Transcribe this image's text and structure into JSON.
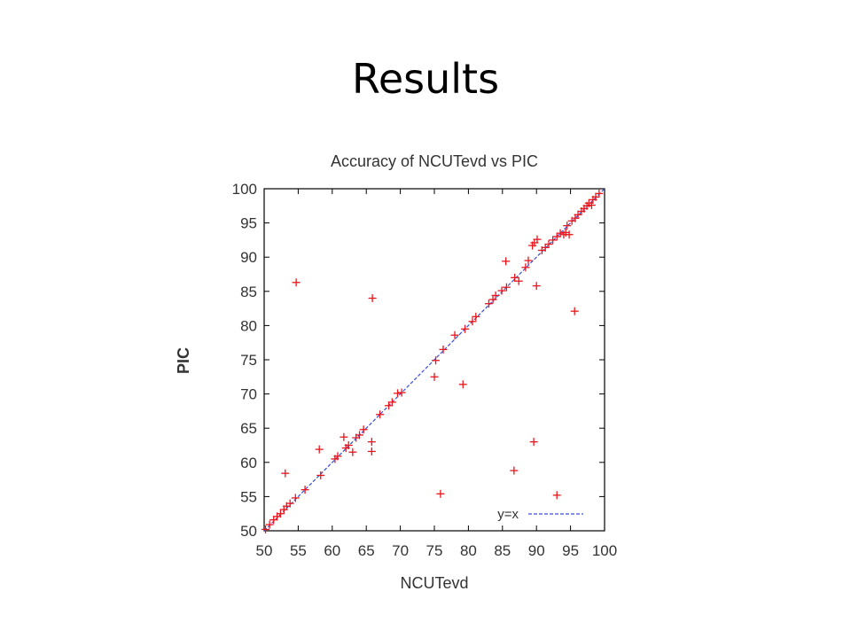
{
  "slide": {
    "title": "Results"
  },
  "chart_data": {
    "type": "scatter",
    "title": "Accuracy of NCUTevd vs PIC",
    "xlabel": "NCUTevd",
    "ylabel": "PIC",
    "xlim": [
      50,
      100
    ],
    "ylim": [
      50,
      100
    ],
    "xticks": [
      50,
      55,
      60,
      65,
      70,
      75,
      80,
      85,
      90,
      95,
      100
    ],
    "yticks": [
      50,
      55,
      60,
      65,
      70,
      75,
      80,
      85,
      90,
      95,
      100
    ],
    "grid": false,
    "legend": {
      "position": "bottom-right",
      "entries": [
        "y=x"
      ]
    },
    "colors": {
      "points": "#e8161c",
      "reference": "#3a4fd6"
    },
    "reference_line": {
      "name": "y=x",
      "style": "dashed",
      "from": [
        50,
        50
      ],
      "to": [
        100,
        100
      ]
    },
    "series": [
      {
        "marker": "plus",
        "points": [
          [
            50.2,
            50.2
          ],
          [
            50.8,
            50.9
          ],
          [
            51.4,
            51.6
          ],
          [
            51.9,
            52.1
          ],
          [
            52.4,
            52.5
          ],
          [
            52.9,
            53.1
          ],
          [
            53.3,
            53.6
          ],
          [
            53.8,
            54.0
          ],
          [
            54.6,
            54.8
          ],
          [
            56.0,
            56.0
          ],
          [
            53.1,
            58.4
          ],
          [
            54.7,
            86.3
          ],
          [
            58.3,
            58.1
          ],
          [
            58.1,
            61.9
          ],
          [
            60.4,
            60.5
          ],
          [
            60.8,
            60.9
          ],
          [
            61.7,
            63.7
          ],
          [
            62.0,
            62.1
          ],
          [
            62.4,
            62.5
          ],
          [
            63.0,
            61.5
          ],
          [
            63.5,
            63.6
          ],
          [
            64.0,
            64.0
          ],
          [
            64.6,
            64.8
          ],
          [
            65.8,
            61.6
          ],
          [
            65.8,
            63.0
          ],
          [
            65.9,
            84.0
          ],
          [
            67.0,
            67.0
          ],
          [
            68.3,
            68.3
          ],
          [
            68.8,
            68.8
          ],
          [
            69.6,
            70.1
          ],
          [
            70.2,
            70.2
          ],
          [
            75.0,
            72.5
          ],
          [
            75.2,
            74.9
          ],
          [
            75.9,
            55.4
          ],
          [
            76.3,
            76.5
          ],
          [
            78.0,
            78.6
          ],
          [
            79.2,
            71.4
          ],
          [
            79.5,
            79.5
          ],
          [
            80.6,
            80.6
          ],
          [
            81.1,
            81.3
          ],
          [
            83.0,
            83.2
          ],
          [
            83.6,
            83.8
          ],
          [
            84.0,
            84.4
          ],
          [
            84.9,
            85.1
          ],
          [
            85.5,
            89.4
          ],
          [
            85.6,
            85.6
          ],
          [
            86.7,
            58.8
          ],
          [
            86.8,
            87.0
          ],
          [
            87.4,
            86.5
          ],
          [
            88.4,
            88.5
          ],
          [
            88.8,
            89.5
          ],
          [
            89.4,
            91.7
          ],
          [
            89.6,
            63.0
          ],
          [
            89.7,
            92.1
          ],
          [
            90.0,
            85.8
          ],
          [
            90.1,
            92.6
          ],
          [
            90.8,
            91.0
          ],
          [
            91.3,
            91.4
          ],
          [
            91.8,
            91.9
          ],
          [
            92.4,
            92.5
          ],
          [
            93.0,
            55.2
          ],
          [
            93.0,
            93.0
          ],
          [
            93.5,
            93.5
          ],
          [
            94.0,
            93.3
          ],
          [
            94.3,
            93.6
          ],
          [
            94.5,
            94.6
          ],
          [
            94.8,
            93.3
          ],
          [
            95.2,
            95.3
          ],
          [
            95.6,
            82.1
          ],
          [
            95.7,
            95.7
          ],
          [
            96.1,
            96.2
          ],
          [
            96.6,
            96.7
          ],
          [
            97.0,
            97.1
          ],
          [
            97.4,
            97.5
          ],
          [
            97.7,
            97.9
          ],
          [
            98.1,
            97.6
          ],
          [
            98.3,
            98.4
          ],
          [
            98.7,
            98.8
          ],
          [
            99.2,
            99.3
          ]
        ]
      }
    ]
  }
}
